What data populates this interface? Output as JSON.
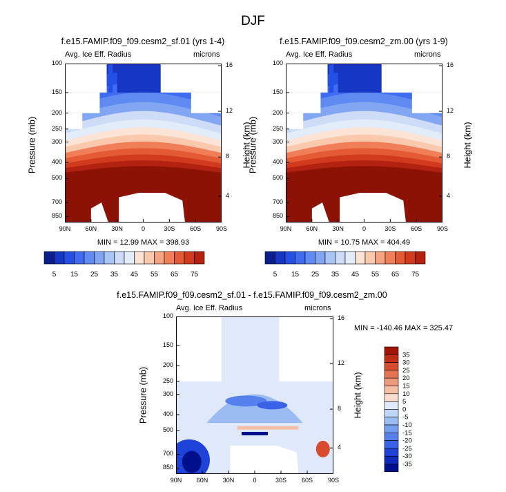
{
  "figure_title": "DJF",
  "colors": {
    "blues": [
      "#0a1e8c",
      "#1537c3",
      "#2550e6",
      "#3f6cf0",
      "#5f8af2",
      "#83a6f3",
      "#a9c4f6",
      "#cfdcf7",
      "#e3ecf9"
    ],
    "reds": [
      "#fbe3d6",
      "#f9c8ad",
      "#f6a583",
      "#f07e58",
      "#e45a34",
      "#d13a1c",
      "#b32110",
      "#8b1204"
    ],
    "diff_scale": [
      "#00108b",
      "#0f2ab8",
      "#1f43d8",
      "#3962e6",
      "#5681ec",
      "#779fef",
      "#9bbcf3",
      "#bfd6f7",
      "#dfe9fa",
      "#f9dccb",
      "#f5bfa3",
      "#ef9a7a",
      "#e67352",
      "#d84c2e",
      "#c02c14",
      "#a01507"
    ]
  },
  "chart_data": [
    {
      "type": "heatmap",
      "title": "f.e15.FAMIP.f09_f09.cesm2_sf.01 (yrs 1-4)",
      "left_label": "Avg. Ice Eff. Radius",
      "right_label": "microns",
      "xlabel": "",
      "ylabel": "Pressure (mb)",
      "ylabel_right": "Height (km)",
      "x_ticks": [
        "90N",
        "60N",
        "30N",
        "0",
        "30S",
        "60S",
        "90S"
      ],
      "y_ticks": [
        100,
        150,
        200,
        250,
        300,
        400,
        500,
        700,
        850
      ],
      "height_ticks": [
        16,
        12,
        8,
        4
      ],
      "stats": "MIN = 12.99   MAX = 398.93",
      "min": 12.99,
      "max": 398.93,
      "colorbar": [
        5,
        15,
        25,
        35,
        45,
        55,
        65,
        75
      ],
      "variant": "sf"
    },
    {
      "type": "heatmap",
      "title": "f.e15.FAMIP.f09_f09.cesm2_zm.00 (yrs 1-9)",
      "left_label": "Avg. Ice Eff. Radius",
      "right_label": "microns",
      "xlabel": "",
      "ylabel": "Pressure (mb)",
      "ylabel_right": "Height (km)",
      "x_ticks": [
        "90N",
        "60N",
        "30N",
        "0",
        "30S",
        "60S",
        "90S"
      ],
      "y_ticks": [
        100,
        150,
        200,
        250,
        300,
        400,
        500,
        700,
        850
      ],
      "height_ticks": [
        16,
        12,
        8,
        4
      ],
      "stats": "MIN = 10.75   MAX = 404.49",
      "min": 10.75,
      "max": 404.49,
      "colorbar": [
        5,
        15,
        25,
        35,
        45,
        55,
        65,
        75
      ],
      "variant": "zm"
    },
    {
      "type": "heatmap",
      "title": "f.e15.FAMIP.f09_f09.cesm2_sf.01 - f.e15.FAMIP.f09_f09.cesm2_zm.00",
      "left_label": "Avg. Ice Eff. Radius",
      "right_label": "microns",
      "xlabel": "",
      "ylabel": "Pressure (mb)",
      "ylabel_right": "Height (km)",
      "x_ticks": [
        "90N",
        "60N",
        "30N",
        "0",
        "30S",
        "60S",
        "90S"
      ],
      "y_ticks": [
        100,
        150,
        200,
        250,
        300,
        400,
        500,
        700,
        850
      ],
      "height_ticks": [
        16,
        12,
        8,
        4
      ],
      "stats": "MIN = -140.46   MAX = 325.47",
      "min": -140.46,
      "max": 325.47,
      "colorbar": [
        35,
        30,
        25,
        20,
        15,
        10,
        5,
        0,
        -5,
        -10,
        -15,
        -20,
        -25,
        -30,
        -35
      ],
      "variant": "diff"
    }
  ]
}
